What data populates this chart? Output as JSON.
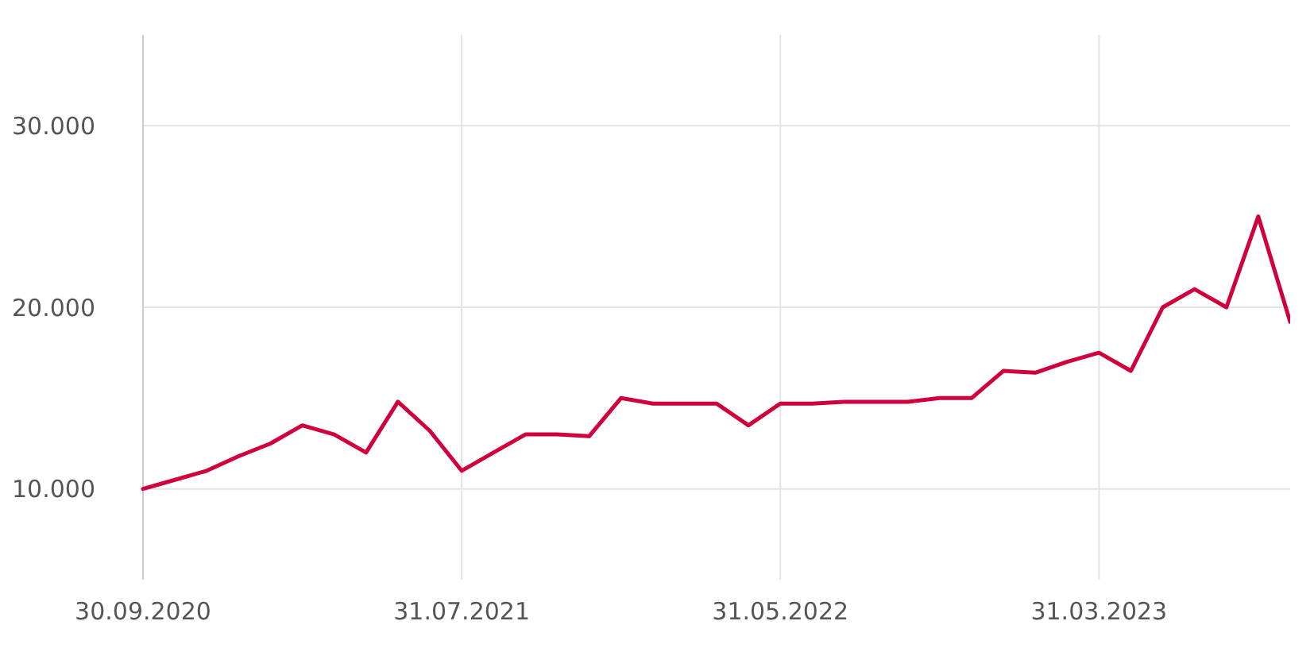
{
  "chart_data": {
    "type": "line",
    "categories": [
      "30.09.2020",
      null,
      null,
      null,
      null,
      null,
      null,
      null,
      null,
      null,
      "31.07.2021",
      null,
      null,
      null,
      null,
      null,
      null,
      null,
      null,
      null,
      "31.05.2022",
      null,
      null,
      null,
      null,
      null,
      null,
      null,
      null,
      null,
      "31.03.2023",
      null,
      null,
      null,
      null,
      null,
      null
    ],
    "series": [
      {
        "color": "#d0003c",
        "values": [
          10000,
          10500,
          11000,
          11800,
          12500,
          13500,
          13000,
          12000,
          14800,
          13200,
          11000,
          12000,
          13000,
          13000,
          12900,
          15000,
          14700,
          14700,
          14700,
          13500,
          14700,
          14700,
          14800,
          14800,
          14800,
          15000,
          15000,
          16500,
          16400,
          17000,
          17500,
          16500,
          20000,
          21000,
          20000,
          25000,
          19200
        ]
      }
    ],
    "ylim": [
      5000,
      35000
    ],
    "yticks": [
      {
        "value": 10000,
        "label": "10.000"
      },
      {
        "value": 20000,
        "label": "20.000"
      },
      {
        "value": 30000,
        "label": "30.000"
      }
    ],
    "grid": true,
    "marker": "none",
    "line_style": "solid"
  }
}
